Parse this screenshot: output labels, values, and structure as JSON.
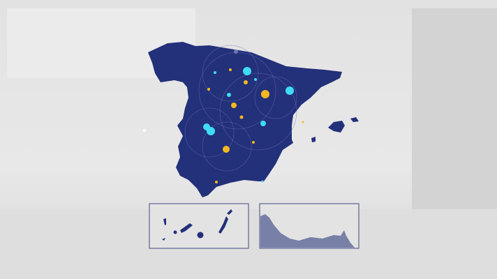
{
  "colors": {
    "land": "#23307a",
    "background": "#e4e4e4",
    "cyan_dot": "#3fdcf5",
    "yellow_dot": "#f5b820",
    "inset_border": "#5c6290",
    "inset_land": "#7880a8"
  },
  "map": {
    "region": "Spain",
    "insets": [
      "canary-islands",
      "ceuta-melilla-coast"
    ]
  }
}
